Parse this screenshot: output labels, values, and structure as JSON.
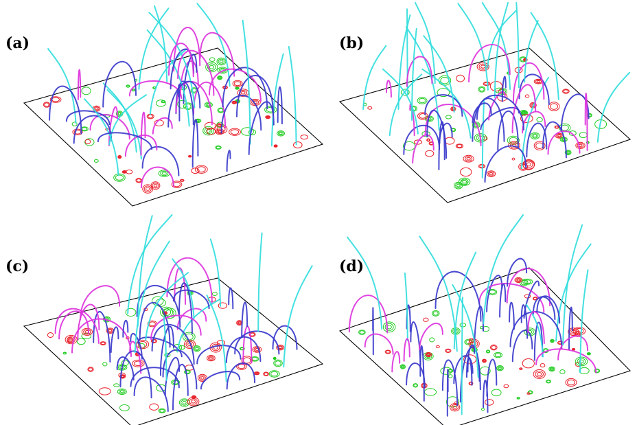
{
  "panels": [
    {
      "label": "(a)"
    },
    {
      "label": "(b)"
    },
    {
      "label": "(c)"
    },
    {
      "label": "(d)"
    }
  ],
  "colors": {
    "frame": "#000000",
    "contour_positive": "#e8202a",
    "contour_negative": "#22cc22",
    "loop_closed": "#3a3acc",
    "loop_closed_alt": "#dd33dd",
    "loop_open": "#33dddd"
  }
}
